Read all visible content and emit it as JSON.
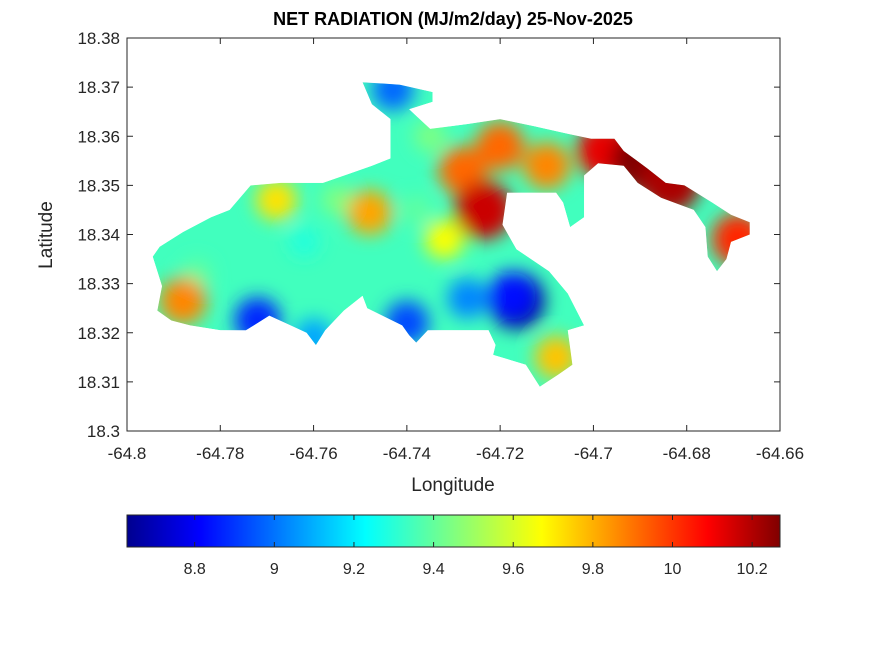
{
  "chart_data": {
    "type": "heatmap",
    "title": "NET RADIATION (MJ/m2/day) 25-Nov-2025",
    "xlabel": "Longitude",
    "ylabel": "Latitude",
    "xlim": [
      -64.8,
      -64.66
    ],
    "ylim": [
      18.3,
      18.38
    ],
    "xticks": [
      -64.8,
      -64.78,
      -64.76,
      -64.74,
      -64.72,
      -64.7,
      -64.68,
      -64.66
    ],
    "xtick_labels": [
      "-64.8",
      "-64.78",
      "-64.76",
      "-64.74",
      "-64.72",
      "-64.7",
      "-64.68",
      "-64.66"
    ],
    "yticks": [
      18.3,
      18.31,
      18.32,
      18.33,
      18.34,
      18.35,
      18.36,
      18.37,
      18.38
    ],
    "ytick_labels": [
      "18.3",
      "18.31",
      "18.32",
      "18.33",
      "18.34",
      "18.35",
      "18.36",
      "18.37",
      "18.38"
    ],
    "colorbar": {
      "colormap": "jet",
      "range": [
        8.63,
        10.27
      ],
      "ticks": [
        8.8,
        9,
        9.2,
        9.4,
        9.6,
        9.8,
        10,
        10.2
      ],
      "tick_labels": [
        "8.8",
        "9",
        "9.2",
        "9.4",
        "9.6",
        "9.8",
        "10",
        "10.2"
      ],
      "orientation": "horizontal",
      "placement": "bottom"
    },
    "grid": false,
    "land_outline": [
      [
        -64.793,
        18.3375
      ],
      [
        -64.788,
        18.3405
      ],
      [
        -64.782,
        18.3435
      ],
      [
        -64.778,
        18.345
      ],
      [
        -64.7735,
        18.35
      ],
      [
        -64.767,
        18.3505
      ],
      [
        -64.758,
        18.3505
      ],
      [
        -64.752,
        18.3525
      ],
      [
        -64.7475,
        18.354
      ],
      [
        -64.7435,
        18.3555
      ],
      [
        -64.7435,
        18.3635
      ],
      [
        -64.7475,
        18.3665
      ],
      [
        -64.7495,
        18.371
      ],
      [
        -64.7415,
        18.3705
      ],
      [
        -64.7345,
        18.369
      ],
      [
        -64.7345,
        18.367
      ],
      [
        -64.7395,
        18.3655
      ],
      [
        -64.735,
        18.3615
      ],
      [
        -64.727,
        18.3625
      ],
      [
        -64.72,
        18.3635
      ],
      [
        -64.7125,
        18.362
      ],
      [
        -64.7055,
        18.3605
      ],
      [
        -64.7005,
        18.3595
      ],
      [
        -64.6955,
        18.3595
      ],
      [
        -64.6935,
        18.357
      ],
      [
        -64.6885,
        18.3535
      ],
      [
        -64.6845,
        18.3505
      ],
      [
        -64.6805,
        18.35
      ],
      [
        -64.6745,
        18.3465
      ],
      [
        -64.6705,
        18.344
      ],
      [
        -64.6665,
        18.3425
      ],
      [
        -64.6665,
        18.34
      ],
      [
        -64.6705,
        18.3385
      ],
      [
        -64.6715,
        18.335
      ],
      [
        -64.6735,
        18.3325
      ],
      [
        -64.6755,
        18.3355
      ],
      [
        -64.676,
        18.3415
      ],
      [
        -64.6785,
        18.345
      ],
      [
        -64.6855,
        18.3475
      ],
      [
        -64.6905,
        18.3505
      ],
      [
        -64.6935,
        18.354
      ],
      [
        -64.699,
        18.3545
      ],
      [
        -64.702,
        18.352
      ],
      [
        -64.702,
        18.3435
      ],
      [
        -64.705,
        18.3415
      ],
      [
        -64.7065,
        18.3465
      ],
      [
        -64.708,
        18.3485
      ],
      [
        -64.7185,
        18.3485
      ],
      [
        -64.7195,
        18.342
      ],
      [
        -64.7165,
        18.337
      ],
      [
        -64.7095,
        18.3325
      ],
      [
        -64.7055,
        18.328
      ],
      [
        -64.702,
        18.3215
      ],
      [
        -64.7055,
        18.3205
      ],
      [
        -64.7045,
        18.3135
      ],
      [
        -64.7075,
        18.3115
      ],
      [
        -64.7115,
        18.309
      ],
      [
        -64.7145,
        18.3135
      ],
      [
        -64.7215,
        18.3155
      ],
      [
        -64.721,
        18.3175
      ],
      [
        -64.7225,
        18.3205
      ],
      [
        -64.73,
        18.3205
      ],
      [
        -64.7355,
        18.3205
      ],
      [
        -64.738,
        18.318
      ],
      [
        -64.7395,
        18.3195
      ],
      [
        -64.741,
        18.3215
      ],
      [
        -64.7485,
        18.325
      ],
      [
        -64.7495,
        18.3275
      ],
      [
        -64.7535,
        18.3245
      ],
      [
        -64.7575,
        18.3205
      ],
      [
        -64.7595,
        18.3175
      ],
      [
        -64.7615,
        18.32
      ],
      [
        -64.7695,
        18.3235
      ],
      [
        -64.7745,
        18.3205
      ],
      [
        -64.78,
        18.3205
      ],
      [
        -64.7865,
        18.3215
      ],
      [
        -64.7905,
        18.3225
      ],
      [
        -64.7935,
        18.3245
      ],
      [
        -64.7925,
        18.3295
      ],
      [
        -64.7945,
        18.3355
      ]
    ],
    "field_samples": [
      {
        "lon": -64.7165,
        "lat": 18.3265,
        "value": 8.63
      },
      {
        "lon": -64.7175,
        "lat": 18.3275,
        "value": 8.85
      },
      {
        "lon": -64.772,
        "lat": 18.3225,
        "value": 8.9
      },
      {
        "lon": -64.74,
        "lat": 18.322,
        "value": 8.95
      },
      {
        "lon": -64.727,
        "lat": 18.327,
        "value": 9.05
      },
      {
        "lon": -64.76,
        "lat": 18.319,
        "value": 9.1
      },
      {
        "lon": -64.743,
        "lat": 18.3695,
        "value": 9.0
      },
      {
        "lon": -64.762,
        "lat": 18.3385,
        "value": 9.3
      },
      {
        "lon": -64.785,
        "lat": 18.332,
        "value": 9.4
      },
      {
        "lon": -64.755,
        "lat": 18.347,
        "value": 9.45
      },
      {
        "lon": -64.738,
        "lat": 18.345,
        "value": 9.4
      },
      {
        "lon": -64.735,
        "lat": 18.36,
        "value": 9.45
      },
      {
        "lon": -64.748,
        "lat": 18.3445,
        "value": 9.8
      },
      {
        "lon": -64.732,
        "lat": 18.339,
        "value": 9.65
      },
      {
        "lon": -64.768,
        "lat": 18.347,
        "value": 9.7
      },
      {
        "lon": -64.708,
        "lat": 18.315,
        "value": 9.75
      },
      {
        "lon": -64.788,
        "lat": 18.3265,
        "value": 9.85
      },
      {
        "lon": -64.728,
        "lat": 18.353,
        "value": 9.9
      },
      {
        "lon": -64.72,
        "lat": 18.358,
        "value": 9.9
      },
      {
        "lon": -64.71,
        "lat": 18.354,
        "value": 9.85
      },
      {
        "lon": -64.7235,
        "lat": 18.345,
        "value": 10.15
      },
      {
        "lon": -64.6975,
        "lat": 18.357,
        "value": 10.1
      },
      {
        "lon": -64.669,
        "lat": 18.339,
        "value": 10.0
      },
      {
        "lon": -64.6895,
        "lat": 18.355,
        "value": 10.27
      },
      {
        "lon": -64.6835,
        "lat": 18.3505,
        "value": 10.2
      }
    ]
  }
}
